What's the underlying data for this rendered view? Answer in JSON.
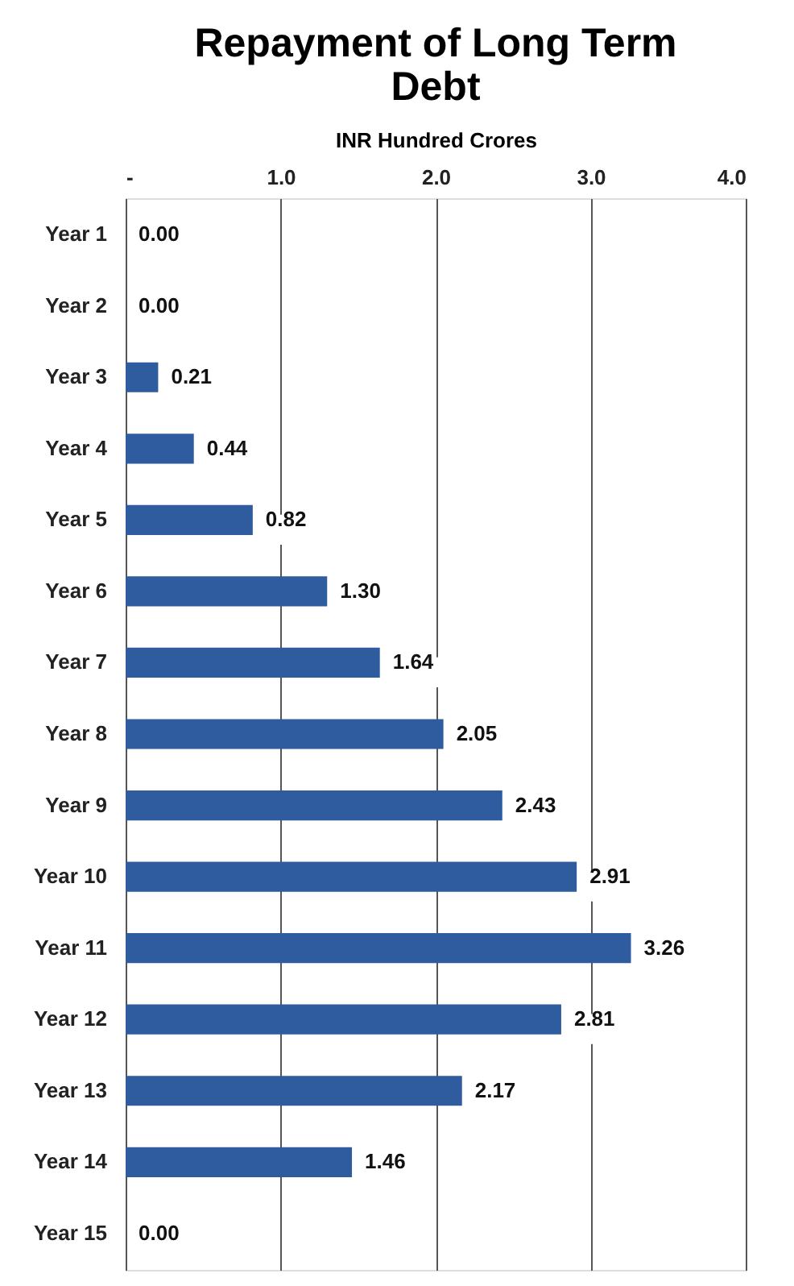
{
  "chart_data": {
    "type": "bar",
    "orientation": "horizontal",
    "title": "Repayment of Long Term Debt",
    "xlabel": "INR Hundred Crores",
    "categories": [
      "Year 1",
      "Year 2",
      "Year 3",
      "Year 4",
      "Year 5",
      "Year 6",
      "Year 7",
      "Year 8",
      "Year 9",
      "Year 10",
      "Year 11",
      "Year 12",
      "Year 13",
      "Year 14",
      "Year 15"
    ],
    "values": [
      0,
      0,
      0.21,
      0.44,
      0.82,
      1.3,
      1.64,
      2.05,
      2.43,
      2.91,
      3.26,
      2.81,
      2.17,
      1.46,
      0
    ],
    "value_labels": [
      "0.00",
      "0.00",
      "0.21",
      "0.44",
      "0.82",
      "1.30",
      "1.64",
      "2.05",
      "2.43",
      "2.91",
      "3.26",
      "2.81",
      "2.17",
      "1.46",
      "0.00"
    ],
    "color": "#2e5c9e",
    "xlim": [
      0,
      4
    ],
    "xticks": [
      {
        "value": 0,
        "label": "-"
      },
      {
        "value": 1,
        "label": "1.0"
      },
      {
        "value": 2,
        "label": "2.0"
      },
      {
        "value": 3,
        "label": "3.0"
      },
      {
        "value": 4,
        "label": "4.0"
      }
    ],
    "grid": "x"
  }
}
